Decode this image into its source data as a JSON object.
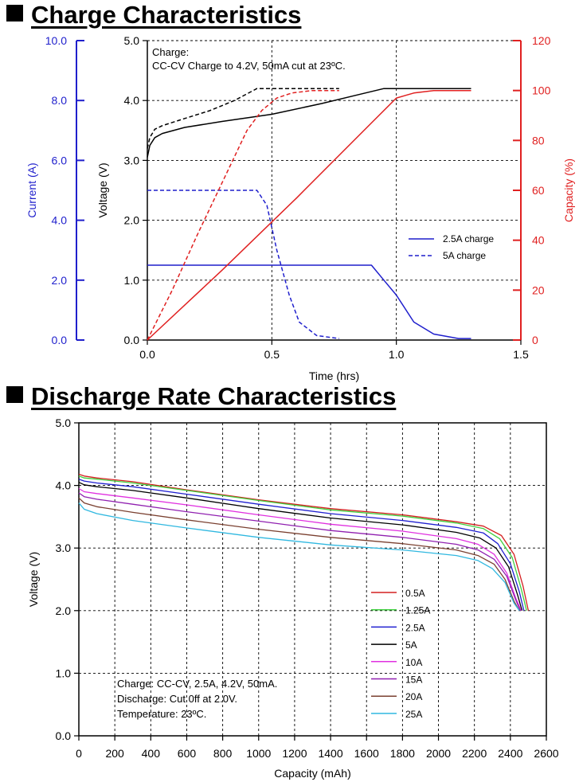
{
  "sections": {
    "charge_title": "Charge Characteristics",
    "discharge_title": "Discharge Rate Characteristics"
  },
  "chart_data": [
    {
      "type": "line",
      "title": "Charge Characteristics",
      "xlabel": "Time (hrs)",
      "xlim": [
        0,
        1.5
      ],
      "x_ticks": [
        "0.0",
        "0.5",
        "1.0",
        "1.5"
      ],
      "axes": {
        "current": {
          "label": "Current (A)",
          "range": [
            0,
            10
          ],
          "ticks": [
            "0.0",
            "2.0",
            "4.0",
            "6.0",
            "8.0",
            "10.0"
          ],
          "color": "#1f1fcc"
        },
        "voltage": {
          "label": "Voltage (V)",
          "range": [
            0,
            5
          ],
          "ticks": [
            "0.0",
            "1.0",
            "2.0",
            "3.0",
            "4.0",
            "5.0"
          ],
          "color": "#000000"
        },
        "capacity": {
          "label": "Capacity (%)",
          "range": [
            0,
            120
          ],
          "ticks": [
            "0",
            "20",
            "40",
            "60",
            "80",
            "100",
            "120"
          ],
          "color": "#e02020"
        }
      },
      "annotation": [
        "Charge:",
        "CC-CV Charge to 4.2V, 50mA cut at 23ºC."
      ],
      "legend": [
        {
          "label": "2.5A charge",
          "dashed": false,
          "color": "#1f1fcc"
        },
        {
          "label": "5A charge",
          "dashed": true,
          "color": "#1f1fcc"
        }
      ],
      "series": [
        {
          "name": "Voltage 2.5A",
          "axis": "voltage",
          "color": "#000000",
          "dashed": false,
          "x": [
            0,
            0.01,
            0.03,
            0.06,
            0.15,
            0.3,
            0.5,
            0.7,
            0.85,
            0.95,
            1.0,
            1.1,
            1.3
          ],
          "y": [
            3.05,
            3.25,
            3.38,
            3.45,
            3.55,
            3.65,
            3.77,
            3.95,
            4.1,
            4.2,
            4.2,
            4.2,
            4.2
          ]
        },
        {
          "name": "Voltage 5A",
          "axis": "voltage",
          "color": "#000000",
          "dashed": true,
          "x": [
            0,
            0.01,
            0.03,
            0.06,
            0.15,
            0.25,
            0.35,
            0.44,
            0.5,
            0.6,
            0.77
          ],
          "y": [
            3.2,
            3.38,
            3.52,
            3.58,
            3.7,
            3.83,
            4.0,
            4.2,
            4.2,
            4.2,
            4.2
          ]
        },
        {
          "name": "Current 2.5A",
          "axis": "current",
          "color": "#1f1fcc",
          "dashed": false,
          "x": [
            0,
            0.9,
            0.95,
            1.0,
            1.07,
            1.15,
            1.25,
            1.3
          ],
          "y": [
            2.5,
            2.5,
            2.0,
            1.5,
            0.6,
            0.2,
            0.05,
            0.05
          ]
        },
        {
          "name": "Current 5A",
          "axis": "current",
          "color": "#1f1fcc",
          "dashed": true,
          "x": [
            0,
            0.44,
            0.48,
            0.52,
            0.57,
            0.61,
            0.68,
            0.77
          ],
          "y": [
            5.0,
            5.0,
            4.5,
            3.0,
            1.5,
            0.6,
            0.15,
            0.05
          ]
        },
        {
          "name": "Capacity 2.5A",
          "axis": "capacity",
          "color": "#e02020",
          "dashed": false,
          "x": [
            0,
            0.3,
            0.6,
            0.9,
            1.0,
            1.07,
            1.15,
            1.3
          ],
          "y": [
            0,
            28,
            57,
            87,
            97,
            99,
            100,
            100
          ]
        },
        {
          "name": "Capacity 5A",
          "axis": "capacity",
          "color": "#e02020",
          "dashed": true,
          "x": [
            0,
            0.1,
            0.2,
            0.3,
            0.4,
            0.46,
            0.52,
            0.58,
            0.66,
            0.77
          ],
          "y": [
            0,
            20,
            42,
            63,
            84,
            92,
            97,
            99,
            100,
            100
          ]
        }
      ]
    },
    {
      "type": "line",
      "title": "Discharge Rate Characteristics",
      "xlabel": "Capacity (mAh)",
      "ylabel": "Voltage (V)",
      "xlim": [
        0,
        2600
      ],
      "ylim": [
        0,
        5
      ],
      "x_ticks": [
        "0",
        "200",
        "400",
        "600",
        "800",
        "1000",
        "1200",
        "1400",
        "1600",
        "1800",
        "2000",
        "2200",
        "2400",
        "2600"
      ],
      "y_ticks": [
        "0.0",
        "1.0",
        "2.0",
        "3.0",
        "4.0",
        "5.0"
      ],
      "annotation": [
        "Charge: CC-CV, 2.5A, 4.2V, 50mA.",
        "Discharge: Cut 0ff at 2.0V.",
        "Temperature: 23ºC."
      ],
      "series": [
        {
          "name": "0.5A",
          "color": "#d42020",
          "x": [
            0,
            30,
            100,
            300,
            600,
            1000,
            1400,
            1800,
            2100,
            2250,
            2350,
            2420,
            2470,
            2500
          ],
          "y": [
            4.18,
            4.15,
            4.12,
            4.06,
            3.93,
            3.77,
            3.63,
            3.53,
            3.42,
            3.35,
            3.2,
            2.9,
            2.4,
            2.0
          ]
        },
        {
          "name": "1.25A",
          "color": "#40d040",
          "x": [
            0,
            30,
            100,
            300,
            600,
            1000,
            1400,
            1800,
            2100,
            2250,
            2340,
            2410,
            2460,
            2490
          ],
          "y": [
            4.15,
            4.12,
            4.1,
            4.04,
            3.92,
            3.76,
            3.61,
            3.51,
            3.4,
            3.31,
            3.15,
            2.85,
            2.35,
            2.0
          ]
        },
        {
          "name": "2.5A",
          "color": "#2020d0",
          "x": [
            0,
            30,
            100,
            300,
            600,
            1000,
            1400,
            1800,
            2100,
            2250,
            2330,
            2400,
            2450,
            2475
          ],
          "y": [
            4.1,
            4.07,
            4.04,
            3.98,
            3.86,
            3.7,
            3.55,
            3.44,
            3.33,
            3.24,
            3.07,
            2.75,
            2.3,
            2.0
          ]
        },
        {
          "name": "5A",
          "color": "#000000",
          "x": [
            0,
            30,
            100,
            300,
            600,
            1000,
            1400,
            1800,
            2100,
            2230,
            2320,
            2390,
            2440,
            2465
          ],
          "y": [
            4.05,
            4.01,
            3.98,
            3.92,
            3.8,
            3.63,
            3.48,
            3.37,
            3.25,
            3.16,
            3.0,
            2.7,
            2.25,
            2.0
          ]
        },
        {
          "name": "10A",
          "color": "#e030e0",
          "x": [
            0,
            30,
            100,
            300,
            600,
            1000,
            1400,
            1800,
            2100,
            2220,
            2310,
            2380,
            2430,
            2460
          ],
          "y": [
            3.95,
            3.9,
            3.87,
            3.8,
            3.69,
            3.53,
            3.38,
            3.27,
            3.15,
            3.06,
            2.9,
            2.6,
            2.2,
            2.0
          ]
        },
        {
          "name": "15A",
          "color": "#9020b0",
          "x": [
            0,
            30,
            100,
            300,
            600,
            1000,
            1400,
            1800,
            2100,
            2220,
            2310,
            2380,
            2430,
            2455
          ],
          "y": [
            3.88,
            3.82,
            3.78,
            3.7,
            3.58,
            3.43,
            3.28,
            3.17,
            3.06,
            2.97,
            2.82,
            2.55,
            2.17,
            2.0
          ]
        },
        {
          "name": "20A",
          "color": "#7a4030",
          "x": [
            0,
            30,
            100,
            300,
            600,
            1000,
            1400,
            1800,
            2100,
            2220,
            2310,
            2370,
            2420,
            2450
          ],
          "y": [
            3.8,
            3.72,
            3.66,
            3.57,
            3.45,
            3.3,
            3.17,
            3.07,
            2.97,
            2.88,
            2.74,
            2.5,
            2.15,
            2.0
          ]
        },
        {
          "name": "25A",
          "color": "#30b8e0",
          "x": [
            0,
            30,
            100,
            300,
            600,
            1000,
            1400,
            1800,
            2100,
            2220,
            2300,
            2370,
            2420,
            2450
          ],
          "y": [
            3.72,
            3.62,
            3.55,
            3.44,
            3.32,
            3.17,
            3.05,
            2.97,
            2.88,
            2.8,
            2.67,
            2.45,
            2.12,
            2.0
          ]
        }
      ]
    }
  ]
}
